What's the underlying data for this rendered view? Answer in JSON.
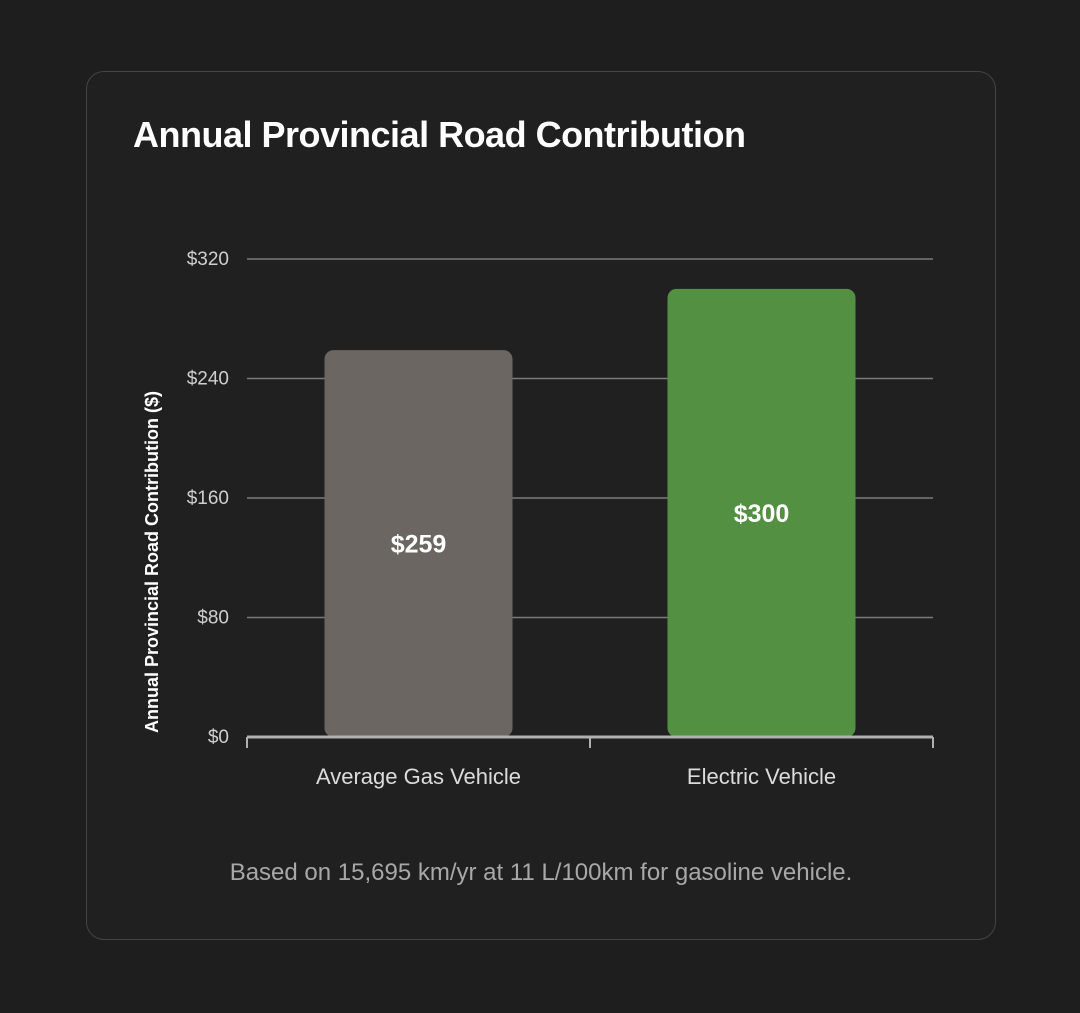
{
  "chart_data": {
    "type": "bar",
    "title": "Annual Provincial Road Contribution",
    "xlabel": "",
    "ylabel": "Annual Provincial Road Contribution ($)",
    "categories": [
      "Average Gas Vehicle",
      "Electric Vehicle"
    ],
    "values": [
      259,
      300
    ],
    "value_labels": [
      "$259",
      "$300"
    ],
    "colors": [
      "#6b6661",
      "#539042"
    ],
    "ylim": [
      0,
      320
    ],
    "yticks": [
      0,
      80,
      160,
      240,
      320
    ],
    "ytick_labels": [
      "$0",
      "$80",
      "$160",
      "$240",
      "$320"
    ],
    "grid": true,
    "legend": "none"
  },
  "footnote": "Based on 15,695 km/yr at 11 L/100km for gasoline vehicle.",
  "colors": {
    "background": "#1e1e1e",
    "card": "#202020",
    "gridline": "#7a7a7a",
    "axis": "#b0b0b0",
    "text": "#ffffff",
    "muted_text": "#a8a8a8"
  }
}
